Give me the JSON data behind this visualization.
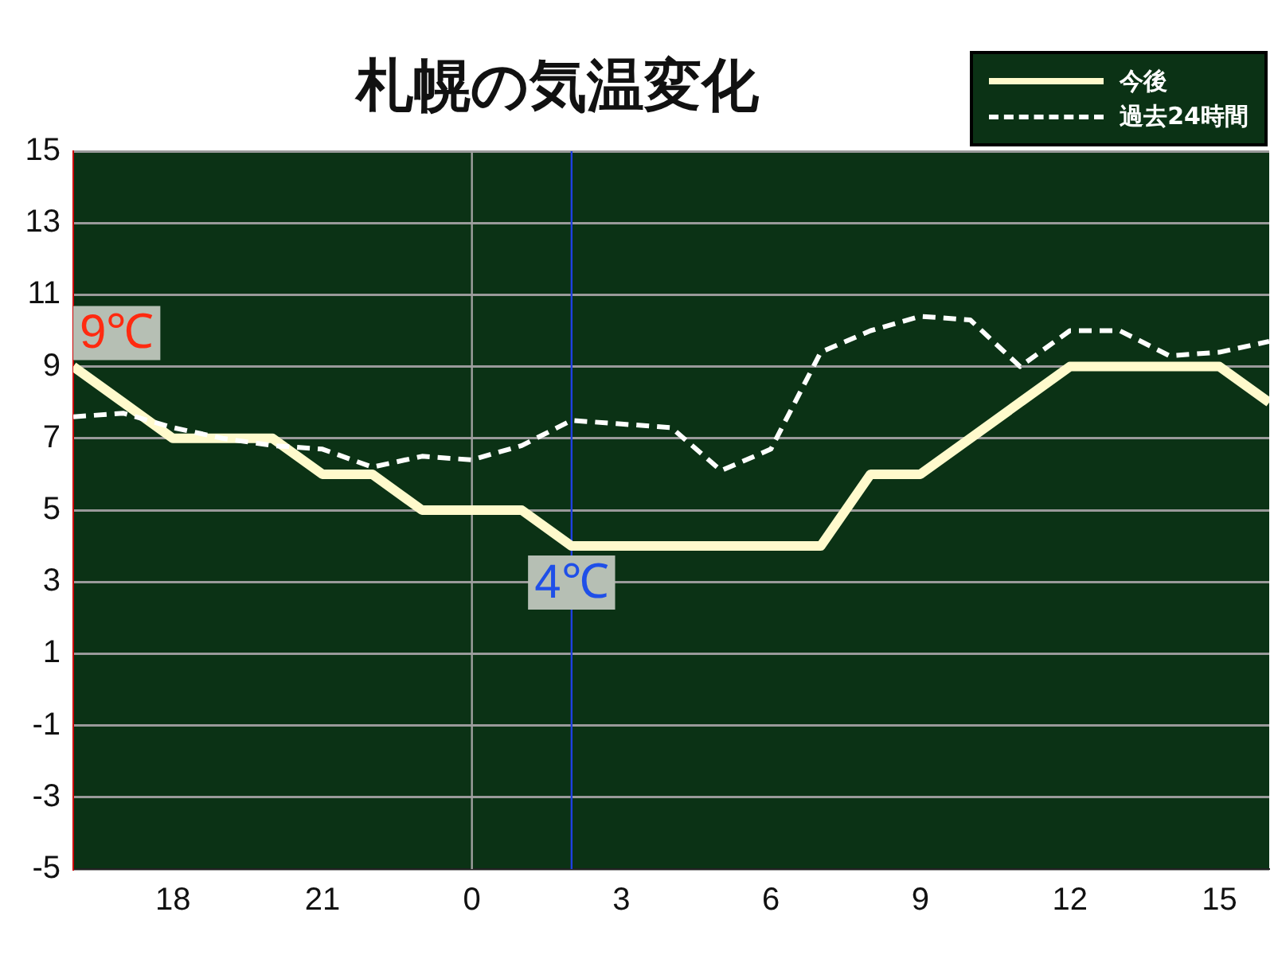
{
  "chart_data": {
    "type": "line",
    "title": "札幌の気温変化",
    "x": [
      "--01-01T16:00",
      "--01-01T17:00",
      "--01-01T18:00",
      "--01-01T19:00",
      "--01-01T20:00",
      "--01-01T21:00",
      "--01-01T22:00",
      "--01-01T23:00",
      "--01-02T00:00",
      "--01-02T01:00",
      "--01-02T02:00",
      "--01-02T03:00",
      "--01-02T04:00",
      "--01-02T05:00",
      "--01-02T06:00",
      "--01-02T07:00",
      "--01-02T08:00",
      "--01-02T09:00",
      "--01-02T10:00",
      "--01-02T11:00",
      "--01-02T12:00",
      "--01-02T13:00",
      "--01-02T14:00",
      "--01-02T15:00",
      "--01-02T16:00"
    ],
    "series": [
      {
        "name": "今後",
        "color": "#fffacc",
        "line_style": "solid",
        "values": [
          9,
          8,
          7,
          7,
          7,
          6,
          6,
          5,
          5,
          5,
          4,
          4,
          4,
          4,
          4,
          4,
          6,
          6,
          7,
          8,
          9,
          9,
          9,
          9,
          8
        ]
      },
      {
        "name": "過去24時間",
        "color": "#ffffff",
        "line_style": "dashed",
        "values": [
          7.6,
          7.7,
          7.3,
          7.0,
          6.8,
          6.7,
          6.2,
          6.5,
          6.4,
          6.8,
          7.5,
          7.4,
          7.3,
          6.1,
          6.7,
          9.4,
          10.0,
          10.4,
          10.3,
          9.0,
          10.0,
          10.0,
          9.3,
          9.4,
          9.7
        ]
      }
    ],
    "xlim": [
      "--01-01T16:00",
      "--01-02T16:00"
    ],
    "xticks": [
      {
        "value": "--01-01T18:00",
        "label": "18"
      },
      {
        "value": "--01-01T21:00",
        "label": "21"
      },
      {
        "value": "--01-02T00:00",
        "label": "0"
      },
      {
        "value": "--01-02T03:00",
        "label": "3"
      },
      {
        "value": "--01-02T06:00",
        "label": "6"
      },
      {
        "value": "--01-02T09:00",
        "label": "9"
      },
      {
        "value": "--01-02T12:00",
        "label": "12"
      },
      {
        "value": "--01-02T15:00",
        "label": "15"
      }
    ],
    "ylim": [
      -5,
      15
    ],
    "yticks": [
      -5,
      -3,
      -1,
      1,
      3,
      5,
      7,
      9,
      11,
      13,
      15
    ],
    "grid": "y",
    "legend": "top right",
    "marker": "none",
    "ref_lines": [
      {
        "axis": "x",
        "value": "--01-02T00:00",
        "color": "#a0a0a0"
      },
      {
        "axis": "x",
        "value": "--01-02T02:00",
        "color": "#1f40e0"
      }
    ],
    "annotations": [
      {
        "text": "9℃",
        "x": "--01-01T16:00",
        "y": 9
      },
      {
        "text": "4℃",
        "x": "--01-02T02:00",
        "y": 4
      }
    ]
  }
}
